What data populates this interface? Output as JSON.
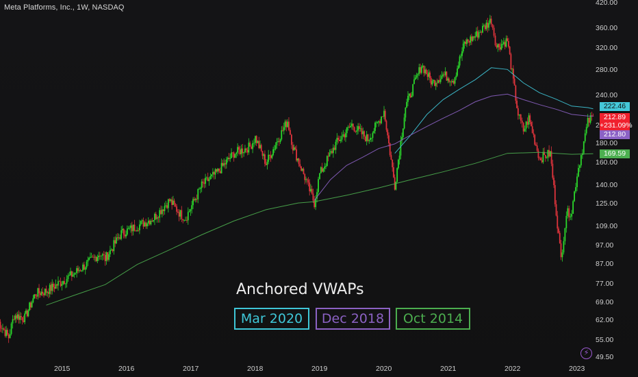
{
  "symbol_title": "Meta Platforms, Inc., 1W, NASDAQ",
  "overlay": {
    "title": "Anchored VWAPs",
    "anchors": [
      {
        "label": "Mar 2020",
        "color": "#3fc7d8"
      },
      {
        "label": "Dec 2018",
        "color": "#8c62c4"
      },
      {
        "label": "Oct 2014",
        "color": "#4cae4f"
      }
    ]
  },
  "price_tags": [
    {
      "label": "222.46",
      "bg": "#45c8da",
      "fg": "#101010"
    },
    {
      "label": "212.89",
      "bg": "#f0212e",
      "fg": "#ffffff"
    },
    {
      "label": "+231.09%",
      "bg": "#f0212e",
      "fg": "#ffffff"
    },
    {
      "label": "212.80",
      "bg": "#8b62c6",
      "fg": "#ffffff"
    },
    {
      "label": "169.59",
      "bg": "#4caf50",
      "fg": "#ffffff"
    }
  ],
  "colors": {
    "up": "#2bd82b",
    "down": "#e0343c",
    "background": "#131313",
    "accent_icon": "#9b59d0"
  },
  "icons": {
    "bottom_right": "lightning-bolt-icon"
  },
  "chart_data": {
    "type": "candlestick",
    "title": "Meta Platforms, Inc., 1W, NASDAQ",
    "y_scale": "log",
    "y_ticks": [
      "420.00",
      "360.00",
      "320.00",
      "280.00",
      "240.00",
      "200.00",
      "180.00",
      "160.00",
      "140.00",
      "125.00",
      "109.00",
      "97.00",
      "87.00",
      "77.00",
      "69.00",
      "62.00",
      "55.00",
      "49.50"
    ],
    "x_ticks": [
      "2015",
      "2016",
      "2017",
      "2018",
      "2019",
      "2020",
      "2021",
      "2022",
      "2023"
    ],
    "price_series": {
      "name": "Meta Platforms weekly close (approx.)",
      "points": [
        [
          "2014-01",
          62
        ],
        [
          "2014-03",
          56
        ],
        [
          "2014-04",
          64
        ],
        [
          "2014-06",
          63
        ],
        [
          "2014-08",
          73
        ],
        [
          "2014-10",
          74
        ],
        [
          "2014-12",
          77
        ],
        [
          "2015-03",
          82
        ],
        [
          "2015-06",
          88
        ],
        [
          "2015-08",
          93
        ],
        [
          "2015-09",
          90
        ],
        [
          "2015-12",
          105
        ],
        [
          "2016-02",
          108
        ],
        [
          "2016-06",
          115
        ],
        [
          "2016-09",
          128
        ],
        [
          "2016-11",
          118
        ],
        [
          "2016-12",
          115
        ],
        [
          "2017-03",
          140
        ],
        [
          "2017-06",
          152
        ],
        [
          "2017-09",
          170
        ],
        [
          "2017-12",
          177
        ],
        [
          "2018-01",
          187
        ],
        [
          "2018-03",
          160
        ],
        [
          "2018-05",
          182
        ],
        [
          "2018-07",
          207
        ],
        [
          "2018-08",
          177
        ],
        [
          "2018-10",
          150
        ],
        [
          "2018-12",
          126
        ],
        [
          "2019-01",
          150
        ],
        [
          "2019-04",
          180
        ],
        [
          "2019-07",
          202
        ],
        [
          "2019-10",
          185
        ],
        [
          "2019-12",
          206
        ],
        [
          "2020-01",
          220
        ],
        [
          "2020-03",
          140
        ],
        [
          "2020-05",
          225
        ],
        [
          "2020-08",
          290
        ],
        [
          "2020-10",
          260
        ],
        [
          "2020-12",
          273
        ],
        [
          "2021-02",
          265
        ],
        [
          "2021-04",
          330
        ],
        [
          "2021-06",
          345
        ],
        [
          "2021-09",
          380
        ],
        [
          "2021-10",
          323
        ],
        [
          "2021-12",
          336
        ],
        [
          "2022-02",
          215
        ],
        [
          "2022-03",
          195
        ],
        [
          "2022-04",
          210
        ],
        [
          "2022-06",
          165
        ],
        [
          "2022-08",
          170
        ],
        [
          "2022-10",
          90
        ],
        [
          "2022-11",
          118
        ],
        [
          "2022-12",
          120
        ],
        [
          "2023-01",
          150
        ],
        [
          "2023-02",
          175
        ],
        [
          "2023-03",
          205
        ],
        [
          "2023-04",
          213
        ]
      ]
    },
    "series": [
      {
        "name": "Mar 2020",
        "color": "#3fc7d8",
        "points": [
          [
            "2020-03",
            170
          ],
          [
            "2020-06",
            190
          ],
          [
            "2020-09",
            215
          ],
          [
            "2020-12",
            235
          ],
          [
            "2021-03",
            250
          ],
          [
            "2021-06",
            265
          ],
          [
            "2021-09",
            285
          ],
          [
            "2021-12",
            282
          ],
          [
            "2022-03",
            260
          ],
          [
            "2022-06",
            245
          ],
          [
            "2022-09",
            236
          ],
          [
            "2022-12",
            226
          ],
          [
            "2023-03",
            224
          ],
          [
            "2023-04",
            222.46
          ]
        ]
      },
      {
        "name": "Dec 2018",
        "color": "#8c62c4",
        "points": [
          [
            "2018-12",
            128
          ],
          [
            "2019-03",
            145
          ],
          [
            "2019-06",
            158
          ],
          [
            "2019-09",
            166
          ],
          [
            "2019-12",
            175
          ],
          [
            "2020-03",
            180
          ],
          [
            "2020-06",
            190
          ],
          [
            "2020-09",
            200
          ],
          [
            "2020-12",
            210
          ],
          [
            "2021-03",
            220
          ],
          [
            "2021-06",
            232
          ],
          [
            "2021-09",
            240
          ],
          [
            "2021-12",
            243
          ],
          [
            "2022-03",
            235
          ],
          [
            "2022-06",
            228
          ],
          [
            "2022-09",
            222
          ],
          [
            "2022-12",
            215
          ],
          [
            "2023-03",
            213
          ],
          [
            "2023-04",
            212.8
          ]
        ]
      },
      {
        "name": "Oct 2014",
        "color": "#4cae4f",
        "points": [
          [
            "2014-10",
            68
          ],
          [
            "2015-03",
            72
          ],
          [
            "2015-09",
            77
          ],
          [
            "2016-03",
            87
          ],
          [
            "2016-09",
            95
          ],
          [
            "2017-03",
            104
          ],
          [
            "2017-09",
            113
          ],
          [
            "2018-03",
            121
          ],
          [
            "2018-09",
            126
          ],
          [
            "2018-12",
            127
          ],
          [
            "2019-06",
            132
          ],
          [
            "2019-12",
            138
          ],
          [
            "2020-06",
            145
          ],
          [
            "2020-12",
            152
          ],
          [
            "2021-06",
            160
          ],
          [
            "2021-12",
            170
          ],
          [
            "2022-06",
            171
          ],
          [
            "2022-12",
            169
          ],
          [
            "2023-04",
            169.59
          ]
        ]
      }
    ]
  }
}
